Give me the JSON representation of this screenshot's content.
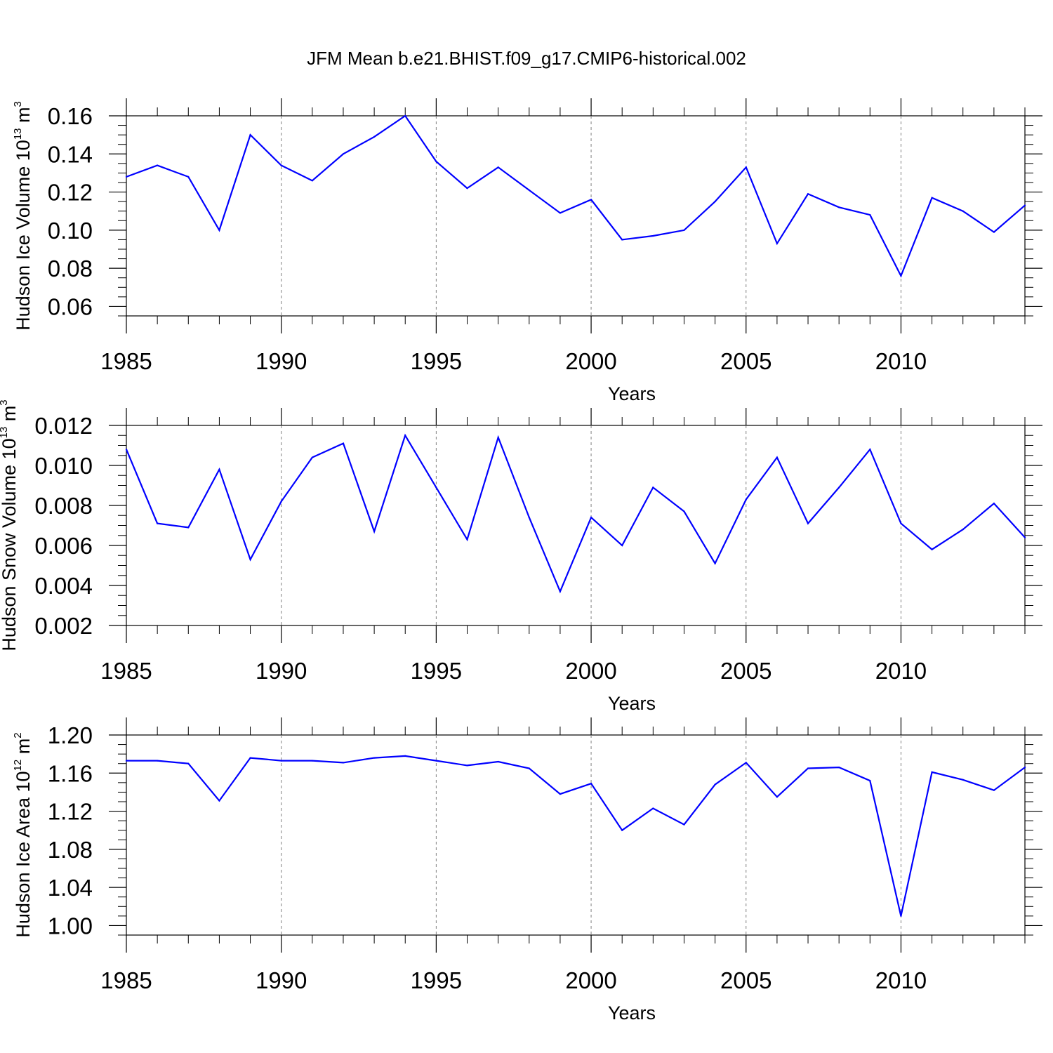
{
  "title": "JFM Mean b.e21.BHIST.f09_g17.CMIP6-historical.002",
  "colors": {
    "line": "#0000ff",
    "axis": "#000000",
    "grid": "#808080"
  },
  "chart_data": [
    {
      "type": "line",
      "ylabel": {
        "main": "Hudson Ice Volume 10",
        "sup": "13",
        "after": " m",
        "unitsup": "3"
      },
      "xlabel": "Years",
      "xlim": [
        1985,
        2014
      ],
      "ylim": [
        0.055,
        0.16
      ],
      "xticks": [
        1985,
        1990,
        1995,
        2000,
        2005,
        2010
      ],
      "xtick_labels": [
        "1985",
        "1990",
        "1995",
        "2000",
        "2005",
        "2010"
      ],
      "yticks": [
        0.06,
        0.08,
        0.1,
        0.12,
        0.14,
        0.16
      ],
      "ytick_labels": [
        "0.06",
        "0.08",
        "0.10",
        "0.12",
        "0.14",
        "0.16"
      ],
      "yminor_step": 0.005,
      "x": [
        1985,
        1986,
        1987,
        1988,
        1989,
        1990,
        1991,
        1992,
        1993,
        1994,
        1995,
        1996,
        1997,
        1998,
        1999,
        2000,
        2001,
        2002,
        2003,
        2004,
        2005,
        2006,
        2007,
        2008,
        2009,
        2010,
        2011,
        2012,
        2013,
        2014
      ],
      "values": [
        0.128,
        0.134,
        0.128,
        0.1,
        0.15,
        0.134,
        0.126,
        0.14,
        0.149,
        0.16,
        0.136,
        0.122,
        0.133,
        0.121,
        0.109,
        0.116,
        0.095,
        0.097,
        0.1,
        0.115,
        0.133,
        0.093,
        0.119,
        0.112,
        0.108,
        0.076,
        0.117,
        0.11,
        0.099,
        0.113
      ]
    },
    {
      "type": "line",
      "ylabel": {
        "main": "Hudson Snow Volume 10",
        "sup": "13",
        "after": " m",
        "unitsup": "3"
      },
      "xlabel": "Years",
      "xlim": [
        1985,
        2014
      ],
      "ylim": [
        0.002,
        0.012
      ],
      "xticks": [
        1985,
        1990,
        1995,
        2000,
        2005,
        2010
      ],
      "xtick_labels": [
        "1985",
        "1990",
        "1995",
        "2000",
        "2005",
        "2010"
      ],
      "yticks": [
        0.002,
        0.004,
        0.006,
        0.008,
        0.01,
        0.012
      ],
      "ytick_labels": [
        "0.002",
        "0.004",
        "0.006",
        "0.008",
        "0.010",
        "0.012"
      ],
      "yminor_step": 0.0005,
      "x": [
        1985,
        1986,
        1987,
        1988,
        1989,
        1990,
        1991,
        1992,
        1993,
        1994,
        1995,
        1996,
        1997,
        1998,
        1999,
        2000,
        2001,
        2002,
        2003,
        2004,
        2005,
        2006,
        2007,
        2008,
        2009,
        2010,
        2011,
        2012,
        2013,
        2014
      ],
      "values": [
        0.0108,
        0.0071,
        0.0069,
        0.0098,
        0.0053,
        0.0082,
        0.0104,
        0.0111,
        0.0067,
        0.0115,
        0.0089,
        0.0063,
        0.0114,
        0.0074,
        0.0037,
        0.0074,
        0.006,
        0.0089,
        0.0077,
        0.0051,
        0.0083,
        0.0104,
        0.0071,
        0.0089,
        0.0108,
        0.0071,
        0.0058,
        0.0068,
        0.0081,
        0.0064
      ]
    },
    {
      "type": "line",
      "ylabel": {
        "main": "Hudson Ice Area 10",
        "sup": "12",
        "after": " m",
        "unitsup": "2"
      },
      "xlabel": "Years",
      "xlim": [
        1985,
        2014
      ],
      "ylim": [
        0.99,
        1.2
      ],
      "xticks": [
        1985,
        1990,
        1995,
        2000,
        2005,
        2010
      ],
      "xtick_labels": [
        "1985",
        "1990",
        "1995",
        "2000",
        "2005",
        "2010"
      ],
      "yticks": [
        1.0,
        1.04,
        1.08,
        1.12,
        1.16,
        1.2
      ],
      "ytick_labels": [
        "1.00",
        "1.04",
        "1.08",
        "1.12",
        "1.16",
        "1.20"
      ],
      "yminor_step": 0.01,
      "x": [
        1985,
        1986,
        1987,
        1988,
        1989,
        1990,
        1991,
        1992,
        1993,
        1994,
        1995,
        1996,
        1997,
        1998,
        1999,
        2000,
        2001,
        2002,
        2003,
        2004,
        2005,
        2006,
        2007,
        2008,
        2009,
        2010,
        2011,
        2012,
        2013,
        2014
      ],
      "values": [
        1.173,
        1.173,
        1.17,
        1.131,
        1.176,
        1.173,
        1.173,
        1.171,
        1.176,
        1.178,
        1.173,
        1.168,
        1.172,
        1.165,
        1.138,
        1.149,
        1.1,
        1.123,
        1.106,
        1.148,
        1.171,
        1.135,
        1.165,
        1.166,
        1.152,
        1.01,
        1.161,
        1.153,
        1.142,
        1.166
      ]
    }
  ]
}
